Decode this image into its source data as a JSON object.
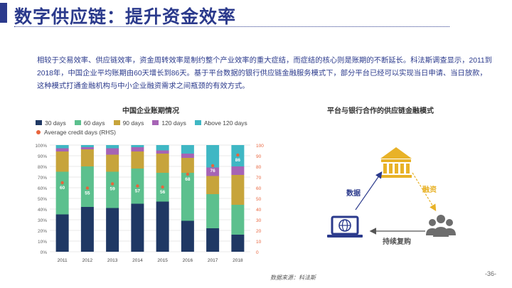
{
  "page": {
    "title": "数字供应链：提升资金效率",
    "body": "相较于交易效率、供应链效率，资金周转效率是制约整个产业效率的重大症结，而症结的核心则是账期的不断延长。科法斯调查显示，2011到2018年，中国企业平均账期由60天增长到86天。基于平台数据的银行供应链金融服务模式下，部分平台已经可以实现当日申请、当日放款，这种模式打通金融机构与中小企业融资需求之间瓶颈的有效方式。",
    "source": "数据来源：科法斯",
    "page_number": "-36-"
  },
  "chart_data": {
    "type": "bar",
    "title": "中国企业账期情况",
    "categories": [
      "2011",
      "2012",
      "2013",
      "2014",
      "2015",
      "2016",
      "2017",
      "2018"
    ],
    "series": [
      {
        "name": "30 days",
        "color": "#1f3864",
        "values": [
          35,
          42,
          41,
          45,
          47,
          29,
          22,
          16
        ]
      },
      {
        "name": "60 days",
        "color": "#5cc08e",
        "values": [
          40,
          38,
          34,
          33,
          27,
          45,
          32,
          28
        ]
      },
      {
        "name": "90 days",
        "color": "#c7a43b",
        "values": [
          19,
          16,
          16,
          16,
          18,
          14,
          17,
          28
        ]
      },
      {
        "name": "120 days",
        "color": "#a664b5",
        "values": [
          3,
          2,
          6,
          4,
          3,
          4,
          8,
          8
        ]
      },
      {
        "name": "Above 120 days",
        "color": "#3fb7c4",
        "values": [
          3,
          2,
          3,
          2,
          5,
          8,
          21,
          20
        ]
      }
    ],
    "line_series": {
      "name": "Average credit days (RHS)",
      "color": "#e8643c",
      "values": [
        60,
        55,
        59,
        57,
        56,
        68,
        76,
        86
      ]
    },
    "y_left_ticks": [
      "0%",
      "10%",
      "20%",
      "30%",
      "40%",
      "50%",
      "60%",
      "70%",
      "80%",
      "90%",
      "100%"
    ],
    "y_right_ticks": [
      "0",
      "10",
      "20",
      "30",
      "40",
      "50",
      "60",
      "70",
      "80",
      "90",
      "100"
    ],
    "ylim_left": [
      0,
      100
    ],
    "ylim_right": [
      0,
      100
    ],
    "legend_position": "top"
  },
  "diagram": {
    "title": "平台与银行合作的供应链金融模式",
    "nodes": {
      "bank": "bank-icon",
      "platform": "laptop-globe-icon",
      "smes": "users-group-icon"
    },
    "edges": {
      "data": {
        "label": "数据",
        "color": "#2b3a8c"
      },
      "financing": {
        "label": "融资",
        "color": "#e8b228"
      },
      "repurchase": {
        "label": "持续复购",
        "color": "#555555"
      }
    },
    "colors": {
      "bank": "#e8b228",
      "platform": "#2b3a8c",
      "smes": "#6d6d6d"
    }
  }
}
